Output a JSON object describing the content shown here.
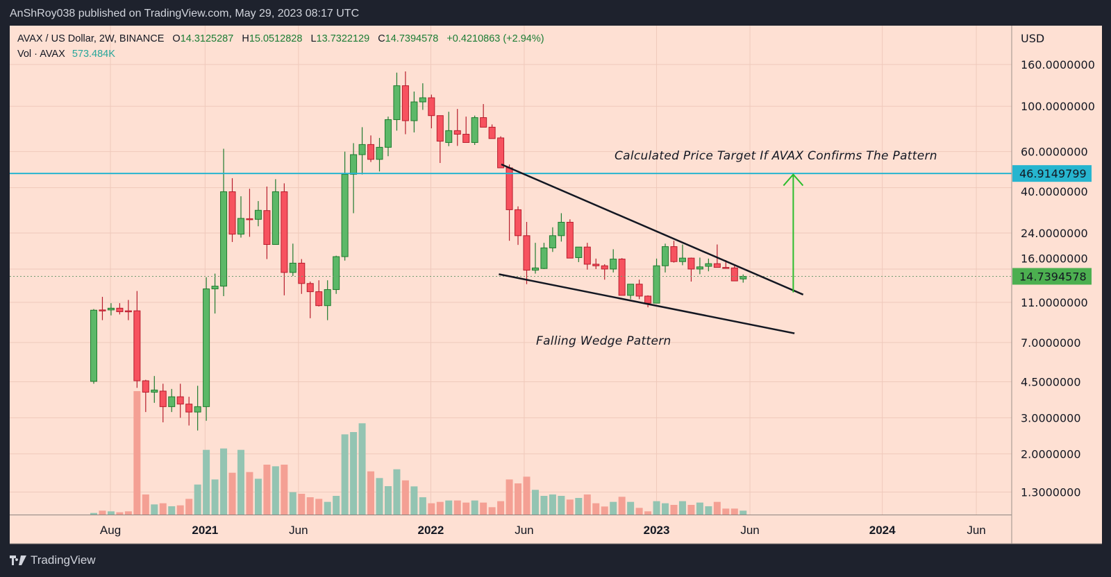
{
  "header": {
    "published": "AnShRoy038 published on TradingView.com, May 29, 2023 08:17 UTC"
  },
  "legend": {
    "symbol": "AVAX / US Dollar, 2W, BINANCE",
    "o_label": "O",
    "o": "14.3125287",
    "h_label": "H",
    "h": "15.0512828",
    "l_label": "L",
    "l": "13.7322129",
    "c_label": "C",
    "c": "14.7394578",
    "change": "+0.4210863 (+2.94%)",
    "vol_label": "Vol · AVAX",
    "vol": "573.484K"
  },
  "footer": {
    "brand": "TradingView"
  },
  "colors": {
    "up": "#5cb868",
    "up_border": "#1e7b2e",
    "down": "#f7525f",
    "down_border": "#b71c2c",
    "vol_up": "#93c4b2",
    "vol_down": "#f4a094",
    "target_line": "#26b5cf",
    "arrow": "#2bbd2b",
    "wedge": "#131722",
    "last_price": "#4caf50"
  },
  "chart_data": {
    "type": "candlestick",
    "title": "AVAX / US Dollar, 2W, BINANCE",
    "interval": "2W",
    "first_bar_date": "2020-07-05",
    "y_scale": "log",
    "ylabel": "USD",
    "ylim": [
      1.15,
      195
    ],
    "grid": true,
    "y_ticks": [
      "160.0000000",
      "100.0000000",
      "60.0000000",
      "40.0000000",
      "24.0000000",
      "16.0000000",
      "11.0000000",
      "7.0000000",
      "4.5000000",
      "3.0000000",
      "2.0000000",
      "1.3000000"
    ],
    "x_ticks": [
      {
        "label": "Aug",
        "date": "2020-08-01"
      },
      {
        "label": "2021",
        "date": "2021-01-01"
      },
      {
        "label": "Jun",
        "date": "2021-06-01"
      },
      {
        "label": "2022",
        "date": "2022-01-01"
      },
      {
        "label": "Jun",
        "date": "2022-06-01"
      },
      {
        "label": "2023",
        "date": "2023-01-01"
      },
      {
        "label": "Jun",
        "date": "2023-06-01"
      },
      {
        "label": "2024",
        "date": "2024-01-01"
      },
      {
        "label": "Jun",
        "date": "2024-06-01"
      }
    ],
    "ohlcv_columns": [
      "open",
      "high",
      "low",
      "close",
      "volume_K"
    ],
    "ohlcv": [
      [
        4.52,
        10.2,
        4.4,
        10.07,
        236
      ],
      [
        10.1,
        11.7,
        9.0,
        10.05,
        573
      ],
      [
        10.1,
        10.9,
        9.5,
        10.3,
        472
      ],
      [
        10.3,
        10.9,
        9.6,
        9.9,
        337
      ],
      [
        10.0,
        11.3,
        9.0,
        9.98,
        472
      ],
      [
        10.0,
        12.5,
        4.2,
        4.55,
        18000
      ],
      [
        4.55,
        4.6,
        3.2,
        4.0,
        2932
      ],
      [
        4.0,
        4.8,
        3.55,
        4.1,
        1483
      ],
      [
        4.05,
        4.4,
        2.85,
        3.4,
        1651
      ],
      [
        3.4,
        4.15,
        3.2,
        3.8,
        1213
      ],
      [
        3.8,
        4.4,
        3.0,
        3.5,
        1348
      ],
      [
        3.5,
        3.8,
        2.75,
        3.2,
        2292
      ],
      [
        3.2,
        4.3,
        2.6,
        3.4,
        4381
      ],
      [
        3.4,
        14.6,
        2.9,
        12.8,
        9436
      ],
      [
        12.8,
        15.2,
        9.7,
        13.2,
        5122
      ],
      [
        13.2,
        62,
        11.8,
        38.2,
        9638
      ],
      [
        38.2,
        44.5,
        21.7,
        23.7,
        6100
      ],
      [
        23.7,
        36.3,
        22.8,
        28.3,
        9436
      ],
      [
        28.2,
        39.5,
        23,
        28,
        6201
      ],
      [
        28,
        34.4,
        25.9,
        31,
        5224
      ],
      [
        30.9,
        40.5,
        17.9,
        21.1,
        7279
      ],
      [
        21.1,
        44,
        21.1,
        38.2,
        7043
      ],
      [
        38.2,
        42,
        11.9,
        15.4,
        7279
      ],
      [
        15.4,
        21.3,
        14.8,
        17.1,
        3269
      ],
      [
        17.1,
        17.9,
        12.1,
        13.6,
        3033
      ],
      [
        13.6,
        13.9,
        9.2,
        12.4,
        2528
      ],
      [
        12.4,
        14.1,
        10.5,
        10.6,
        2292
      ],
      [
        10.6,
        14.1,
        9.0,
        12.7,
        1854
      ],
      [
        12.7,
        18.6,
        12.1,
        18.4,
        2730
      ],
      [
        18.4,
        60,
        17.6,
        46.5,
        11694
      ],
      [
        46.5,
        66,
        30,
        58,
        12031
      ],
      [
        58,
        79,
        46.4,
        65,
        13312
      ],
      [
        65,
        72,
        53.4,
        55,
        6302
      ],
      [
        55,
        70,
        48,
        63,
        5325
      ],
      [
        63,
        89,
        57,
        86,
        4145
      ],
      [
        86,
        146,
        76,
        126,
        6605
      ],
      [
        126,
        148,
        73,
        85,
        4988
      ],
      [
        85,
        118,
        74.5,
        105,
        4111
      ],
      [
        105,
        129.5,
        96,
        110,
        2528
      ],
      [
        110,
        114,
        78,
        90,
        1651
      ],
      [
        90,
        90,
        52.8,
        67.5,
        1854
      ],
      [
        66.5,
        94,
        63.8,
        76,
        2056
      ],
      [
        76,
        97,
        64,
        73,
        2056
      ],
      [
        73,
        89,
        66.5,
        66.5,
        1752
      ],
      [
        66.5,
        90,
        64.7,
        88,
        2056
      ],
      [
        88,
        102.5,
        79,
        79,
        1752
      ],
      [
        79,
        81.5,
        69.5,
        69.5,
        1078
      ],
      [
        70,
        71.3,
        50,
        50,
        1955
      ],
      [
        50,
        51.9,
        22,
        31.2,
        5122
      ],
      [
        31.2,
        32.4,
        21,
        23.3,
        4550
      ],
      [
        23.3,
        27.2,
        13.5,
        15.8,
        5527
      ],
      [
        15.8,
        21.5,
        15.2,
        16.2,
        3606
      ],
      [
        16.1,
        21.5,
        16,
        20.3,
        2730
      ],
      [
        20.3,
        25.6,
        19.4,
        23.3,
        2932
      ],
      [
        23.3,
        30,
        21.8,
        27.1,
        2730
      ],
      [
        27.1,
        28,
        18.1,
        18.1,
        2191
      ],
      [
        18.2,
        20.5,
        17.3,
        20.5,
        2426
      ],
      [
        20.5,
        21.5,
        15.9,
        16.9,
        2932
      ],
      [
        16.9,
        18,
        16,
        16.6,
        1651
      ],
      [
        16.6,
        16.9,
        14.2,
        16,
        1180
      ],
      [
        16,
        20,
        15.4,
        17.9,
        1854
      ],
      [
        17.9,
        18.1,
        11.9,
        11.9,
        2595
      ],
      [
        11.9,
        13.5,
        11.4,
        13.5,
        1854
      ],
      [
        13.5,
        14.2,
        11.4,
        11.8,
        977
      ],
      [
        11.8,
        11.9,
        10.4,
        10.9,
        472
      ],
      [
        10.9,
        18,
        10.9,
        16.6,
        1955
      ],
      [
        16.6,
        21.3,
        15.4,
        20.6,
        1651
      ],
      [
        20.6,
        22,
        17.2,
        17.4,
        1415
      ],
      [
        17.4,
        21.1,
        16.7,
        18.1,
        1955
      ],
      [
        18.1,
        18.2,
        13.9,
        16,
        1415
      ],
      [
        16,
        18.2,
        15.1,
        16.4,
        1752
      ],
      [
        16.5,
        18,
        15.6,
        17,
        1213
      ],
      [
        17,
        21.1,
        16.3,
        16.3,
        1854
      ],
      [
        16.3,
        17.7,
        16.2,
        16.2,
        876
      ],
      [
        16.2,
        16.6,
        14.0,
        14.0,
        876
      ],
      [
        14.3125287,
        15.0512828,
        13.7322129,
        14.7394578,
        573.484
      ]
    ],
    "target_price": {
      "value": 46.9149799,
      "label": "46.9149799"
    },
    "last_price": {
      "value": 14.7394578,
      "label": "14.7394578"
    },
    "drawings": {
      "wedge_upper": [
        {
          "date": "2022-04-25",
          "price": 52
        },
        {
          "date": "2023-08-26",
          "price": 12.0
        }
      ],
      "wedge_lower": [
        {
          "date": "2022-04-21",
          "price": 15.1
        },
        {
          "date": "2023-08-12",
          "price": 7.76
        }
      ],
      "target_arrow": [
        {
          "date": "2023-08-10",
          "price": 12.3
        },
        {
          "date": "2023-08-10",
          "price": 46.4
        }
      ]
    },
    "annotations": {
      "target_text": "Calculated Price Target If AVAX Confirms The Pattern",
      "wedge_text": "Falling Wedge Pattern"
    }
  }
}
